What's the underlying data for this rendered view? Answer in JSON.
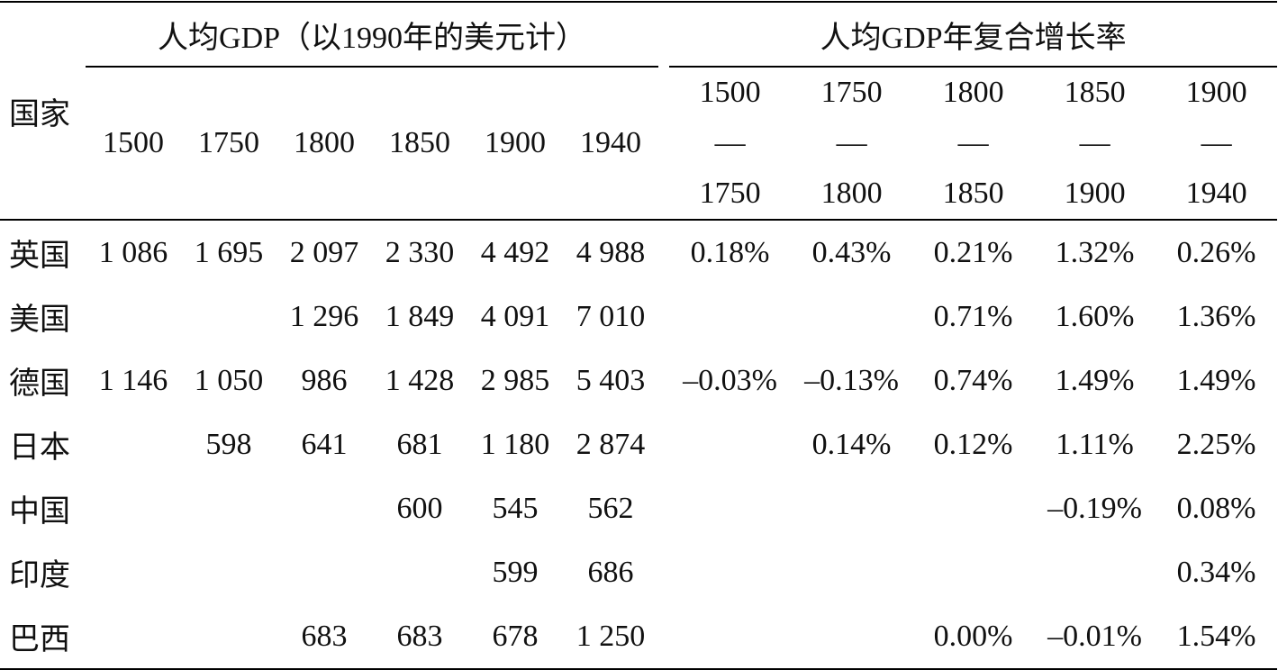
{
  "table": {
    "header": {
      "country": "国家",
      "gdp_group": "人均GDP（以1990年的美元计）",
      "growth_group": "人均GDP年复合增长率",
      "years": [
        "1500",
        "1750",
        "1800",
        "1850",
        "1900",
        "1940"
      ],
      "periods": [
        "1500—1750",
        "1750—1800",
        "1800—1850",
        "1850—1900",
        "1900—1940"
      ]
    },
    "rows": [
      {
        "country": "英国",
        "cells": [
          "1 086",
          "1 695",
          "2 097",
          "2 330",
          "4 492",
          "4 988",
          "0.18%",
          "0.43%",
          "0.21%",
          "1.32%",
          "0.26%"
        ]
      },
      {
        "country": "美国",
        "cells": [
          null,
          null,
          "1 296",
          "1 849",
          "4 091",
          "7 010",
          null,
          null,
          "0.71%",
          "1.60%",
          "1.36%"
        ]
      },
      {
        "country": "德国",
        "cells": [
          "1 146",
          "1 050",
          "986",
          "1 428",
          "2 985",
          "5 403",
          "–0.03%",
          "–0.13%",
          "0.74%",
          "1.49%",
          "1.49%"
        ]
      },
      {
        "country": "日本",
        "cells": [
          null,
          "598",
          "641",
          "681",
          "1 180",
          "2 874",
          null,
          "0.14%",
          "0.12%",
          "1.11%",
          "2.25%"
        ]
      },
      {
        "country": "中国",
        "cells": [
          null,
          null,
          null,
          "600",
          "545",
          "562",
          null,
          null,
          null,
          "–0.19%",
          "0.08%"
        ]
      },
      {
        "country": "印度",
        "cells": [
          null,
          null,
          null,
          null,
          "599",
          "686",
          null,
          null,
          null,
          null,
          "0.34%"
        ]
      },
      {
        "country": "巴西",
        "cells": [
          null,
          null,
          "683",
          "683",
          "678",
          "1 250",
          null,
          null,
          "0.00%",
          "–0.01%",
          "1.54%"
        ]
      }
    ]
  }
}
